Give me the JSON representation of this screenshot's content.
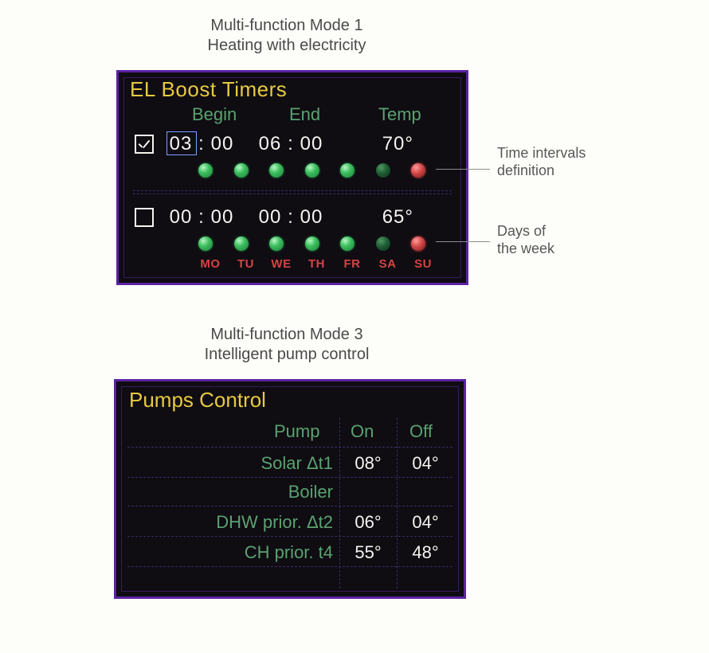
{
  "colors": {
    "page_bg": "#fdfdf9",
    "caption_text": "#4a4a4a",
    "panel_bg": "#0f0c12",
    "panel_border": "#5a22a3",
    "panel_inner_border": "#361b61",
    "separator": "#3a2d66",
    "title": "#e7c940",
    "header_green": "#5aa26f",
    "label_green": "#5aa26f",
    "value_white": "#f5f5f0",
    "checkbox_white": "#f5f5f0",
    "selection_box": "#7aa2ff",
    "day_red": "#d24545",
    "dot_green_light": "#3cbf5e",
    "dot_green_dark": "#1f5c34",
    "dot_red": "#d24545",
    "leader": "#8c8c8c"
  },
  "caption1": {
    "line1": "Multi-function Mode 1",
    "line2": "Heating with electricity"
  },
  "caption2": {
    "line1": "Multi-function Mode 3",
    "line2": "Intelligent pump control"
  },
  "panel1": {
    "title": "EL Boost Timers",
    "headers": {
      "begin": "Begin",
      "end": "End",
      "temp": "Temp"
    },
    "rows": [
      {
        "checked": true,
        "begin_h": "03",
        "begin_m": "00",
        "end_h": "06",
        "end_m": "00",
        "temp": "70°",
        "selected_field": "begin_h",
        "days": [
          "light",
          "light",
          "light",
          "light",
          "light",
          "dark",
          "red"
        ]
      },
      {
        "checked": false,
        "begin_h": "00",
        "begin_m": "00",
        "end_h": "00",
        "end_m": "00",
        "temp": "65°",
        "selected_field": null,
        "days": [
          "light",
          "light",
          "light",
          "light",
          "light",
          "dark",
          "red"
        ]
      }
    ],
    "day_labels": [
      "MO",
      "TU",
      "WE",
      "TH",
      "FR",
      "SA",
      "SU"
    ]
  },
  "annotations": {
    "time_intervals": {
      "line1": "Time intervals",
      "line2": "definition"
    },
    "days_of_week": {
      "line1": "Days of",
      "line2": "the week"
    }
  },
  "panel2": {
    "title": "Pumps Control",
    "headers": {
      "pump": "Pump",
      "on": "On",
      "off": "Off"
    },
    "rows": [
      {
        "label": "Solar Δt1",
        "on": "08°",
        "off": "04°"
      },
      {
        "label": "Boiler",
        "on": "",
        "off": ""
      },
      {
        "label": "DHW prior. Δt2",
        "on": "06°",
        "off": "04°"
      },
      {
        "label": "CH prior. t4",
        "on": "55°",
        "off": "48°"
      }
    ]
  }
}
